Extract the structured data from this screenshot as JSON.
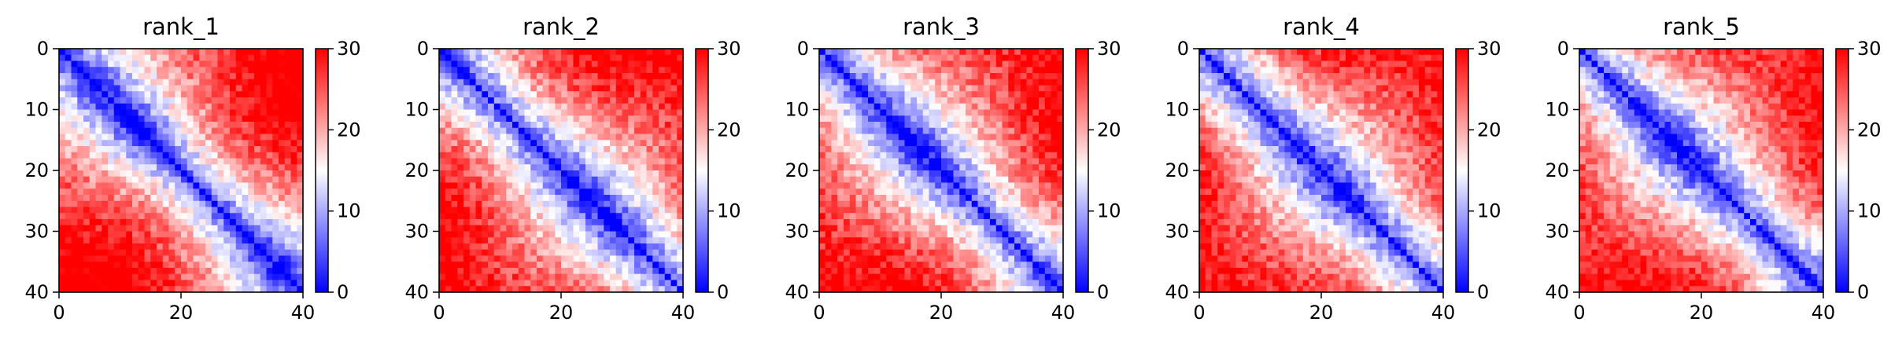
{
  "chart_data": [
    {
      "type": "heatmap",
      "title": "rank_1",
      "seed": 11,
      "size": 40,
      "xticks": [
        "0",
        "20",
        "40"
      ],
      "yticks": [
        "0",
        "10",
        "20",
        "30",
        "40"
      ],
      "xlim": [
        0,
        40
      ],
      "ylim": [
        40,
        0
      ],
      "colorbar": {
        "ticks": [
          "0",
          "10",
          "20",
          "30"
        ],
        "range": [
          0,
          30
        ],
        "colormap": "bwr"
      },
      "grid": false,
      "value_range": [
        0,
        30
      ]
    },
    {
      "type": "heatmap",
      "title": "rank_2",
      "seed": 23,
      "size": 40,
      "xticks": [
        "0",
        "20",
        "40"
      ],
      "yticks": [
        "0",
        "10",
        "20",
        "30",
        "40"
      ],
      "xlim": [
        0,
        40
      ],
      "ylim": [
        40,
        0
      ],
      "colorbar": {
        "ticks": [
          "0",
          "10",
          "20",
          "30"
        ],
        "range": [
          0,
          30
        ],
        "colormap": "bwr"
      },
      "grid": false,
      "value_range": [
        0,
        30
      ]
    },
    {
      "type": "heatmap",
      "title": "rank_3",
      "seed": 37,
      "size": 40,
      "xticks": [
        "0",
        "20",
        "40"
      ],
      "yticks": [
        "0",
        "10",
        "20",
        "30",
        "40"
      ],
      "xlim": [
        0,
        40
      ],
      "ylim": [
        40,
        0
      ],
      "colorbar": {
        "ticks": [
          "0",
          "10",
          "20",
          "30"
        ],
        "range": [
          0,
          30
        ],
        "colormap": "bwr"
      },
      "grid": false,
      "value_range": [
        0,
        30
      ]
    },
    {
      "type": "heatmap",
      "title": "rank_4",
      "seed": 41,
      "size": 40,
      "xticks": [
        "0",
        "20",
        "40"
      ],
      "yticks": [
        "0",
        "10",
        "20",
        "30",
        "40"
      ],
      "xlim": [
        0,
        40
      ],
      "ylim": [
        40,
        0
      ],
      "colorbar": {
        "ticks": [
          "0",
          "10",
          "20",
          "30"
        ],
        "range": [
          0,
          30
        ],
        "colormap": "bwr"
      },
      "grid": false,
      "value_range": [
        0,
        30
      ]
    },
    {
      "type": "heatmap",
      "title": "rank_5",
      "seed": 59,
      "size": 40,
      "xticks": [
        "0",
        "20",
        "40"
      ],
      "yticks": [
        "0",
        "10",
        "20",
        "30",
        "40"
      ],
      "xlim": [
        0,
        40
      ],
      "ylim": [
        40,
        0
      ],
      "colorbar": {
        "ticks": [
          "0",
          "10",
          "20",
          "30"
        ],
        "range": [
          0,
          30
        ],
        "colormap": "bwr"
      },
      "grid": false,
      "value_range": [
        0,
        30
      ]
    }
  ],
  "colors": {
    "low": "#0000ff",
    "mid": "#ffffff",
    "high": "#ff0000"
  }
}
